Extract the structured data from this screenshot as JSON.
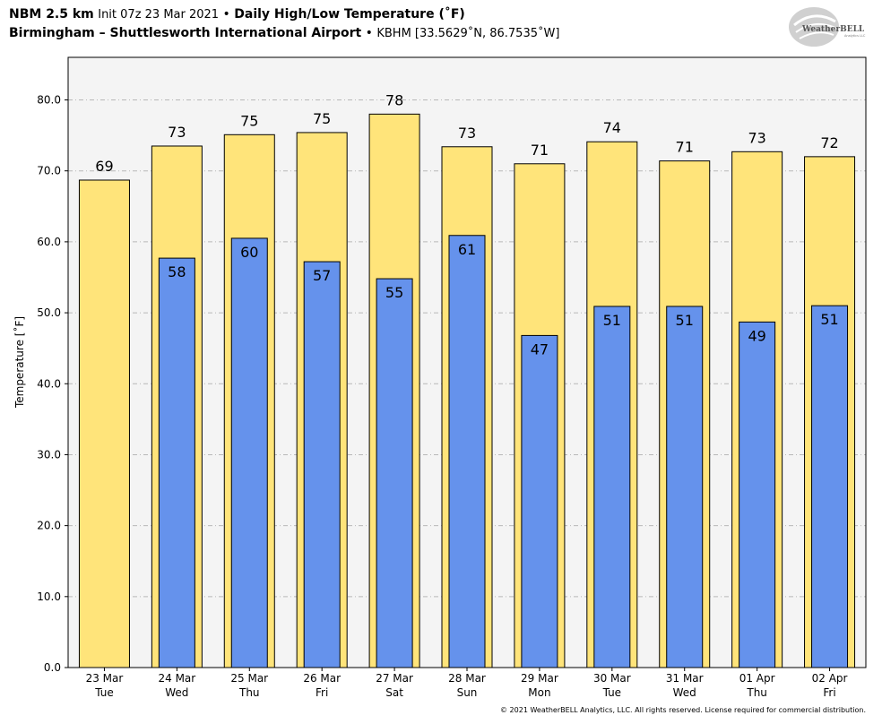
{
  "header": {
    "model": "NBM 2.5 km",
    "init": "Init 07z 23 Mar 2021",
    "bullet": "•",
    "product": "Daily High/Low Temperature (˚F)",
    "station": "Birmingham – Shuttlesworth International Airport",
    "station_code": "KBHM [33.5629˚N, 86.7535˚W]"
  },
  "logo": {
    "text": "WeatherBELL",
    "sub": "Analytics LLC"
  },
  "copyright": "© 2021 WeatherBELL Analytics, LLC. All rights reserved. License required for commercial distribution.",
  "chart_data": {
    "type": "bar",
    "ylabel": "Temperature [˚F]",
    "ylim": [
      0,
      86
    ],
    "yticks": [
      "0.0",
      "10.0",
      "20.0",
      "30.0",
      "40.0",
      "50.0",
      "60.0",
      "70.0",
      "80.0"
    ],
    "grid": true,
    "categories": [
      {
        "date": "23 Mar",
        "day": "Tue"
      },
      {
        "date": "24 Mar",
        "day": "Wed"
      },
      {
        "date": "25 Mar",
        "day": "Thu"
      },
      {
        "date": "26 Mar",
        "day": "Fri"
      },
      {
        "date": "27 Mar",
        "day": "Sat"
      },
      {
        "date": "28 Mar",
        "day": "Sun"
      },
      {
        "date": "29 Mar",
        "day": "Mon"
      },
      {
        "date": "30 Mar",
        "day": "Tue"
      },
      {
        "date": "31 Mar",
        "day": "Wed"
      },
      {
        "date": "01 Apr",
        "day": "Thu"
      },
      {
        "date": "02 Apr",
        "day": "Fri"
      }
    ],
    "series": [
      {
        "role": "high",
        "color": "#ffe47a",
        "values": [
          68.7,
          73.5,
          75.1,
          75.4,
          78.0,
          73.4,
          71.0,
          74.1,
          71.4,
          72.7,
          72.0
        ],
        "labels": [
          "69",
          "73",
          "75",
          "75",
          "78",
          "73",
          "71",
          "74",
          "71",
          "73",
          "72"
        ]
      },
      {
        "role": "low",
        "color": "#6592ec",
        "values": [
          null,
          57.7,
          60.5,
          57.2,
          54.8,
          60.9,
          46.8,
          50.9,
          50.9,
          48.7,
          51.0
        ],
        "labels": [
          "",
          "58",
          "60",
          "57",
          "55",
          "61",
          "47",
          "51",
          "51",
          "49",
          "51"
        ]
      }
    ]
  }
}
